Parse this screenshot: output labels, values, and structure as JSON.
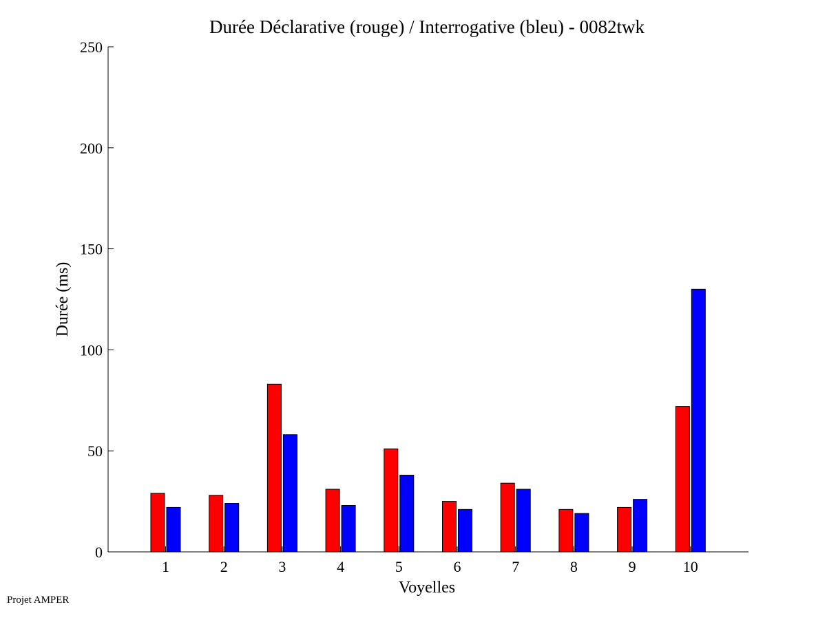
{
  "footer": {
    "credit": "Projet AMPER"
  },
  "colors": {
    "declarative": "#ff0000",
    "interrogative": "#0000ff",
    "axis": "#000000",
    "background": "#ffffff"
  },
  "chart_data": {
    "type": "bar",
    "title": "Durée Déclarative (rouge) / Interrogative (bleu) - 0082twk",
    "xlabel": "Voyelles",
    "ylabel": "Durée (ms)",
    "ylim": [
      0,
      250
    ],
    "yticks": [
      0,
      50,
      100,
      150,
      200,
      250
    ],
    "grid": false,
    "categories": [
      "1",
      "2",
      "3",
      "4",
      "5",
      "6",
      "7",
      "8",
      "9",
      "10"
    ],
    "series": [
      {
        "color": "#ff0000",
        "values": [
          29,
          28,
          83,
          31,
          51,
          25,
          34,
          21,
          22,
          72
        ]
      },
      {
        "color": "#0000ff",
        "values": [
          22,
          24,
          58,
          23,
          38,
          21,
          31,
          19,
          26,
          130
        ]
      }
    ]
  }
}
